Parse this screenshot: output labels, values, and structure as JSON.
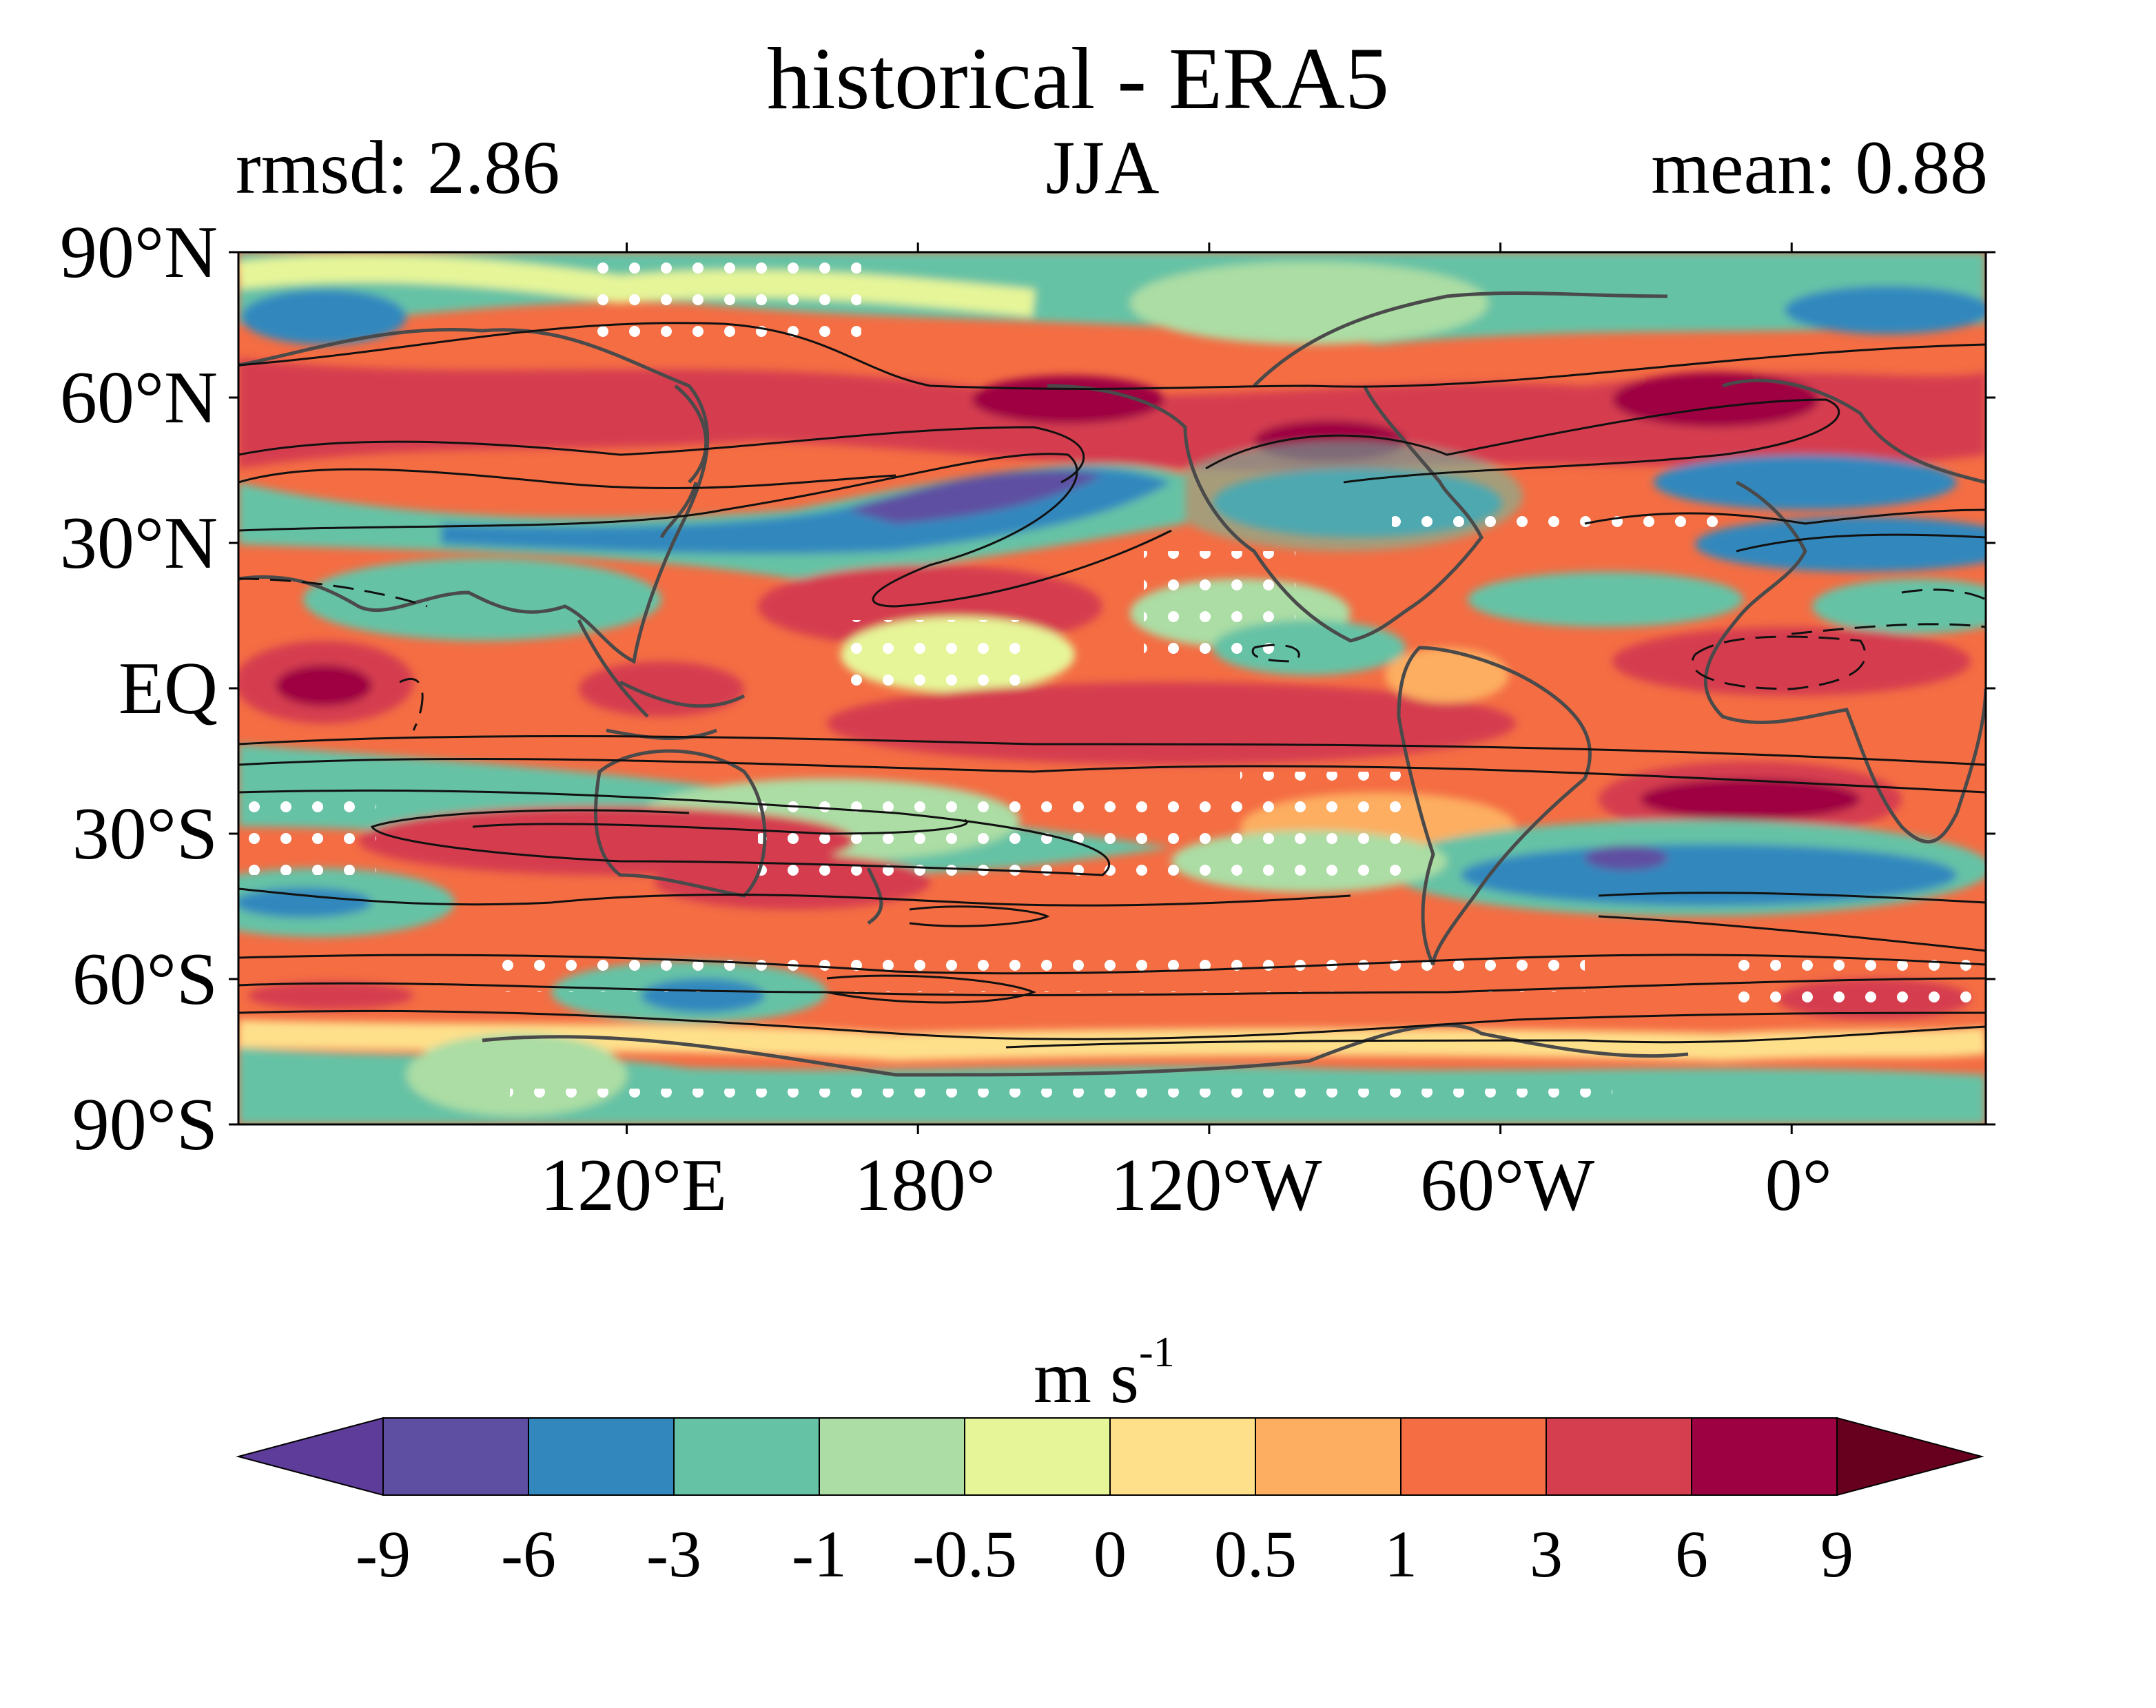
{
  "figure": {
    "title": "historical - ERA5",
    "rmsd_text": "rmsd: 2.86",
    "season": "JJA",
    "mean_text": "mean: 0.88"
  },
  "axes": {
    "lat_ticks": [
      "90°N",
      "60°N",
      "30°N",
      "EQ",
      "30°S",
      "60°S",
      "90°S"
    ],
    "lat_values": [
      90,
      60,
      30,
      0,
      -30,
      -60,
      -90
    ],
    "lon_ticks": [
      "120°E",
      "180°",
      "120°W",
      "60°W",
      "0°"
    ],
    "lon_values": [
      120,
      180,
      240,
      300,
      360
    ],
    "lon_range": [
      40,
      400
    ],
    "lat_range": [
      -90,
      90
    ]
  },
  "colorbar": {
    "units_base": "m s",
    "units_exp": "-1",
    "levels": [
      "-9",
      "-6",
      "-3",
      "-1",
      "-0.5",
      "0",
      "0.5",
      "1",
      "3",
      "6",
      "9"
    ],
    "colors": [
      "#5e3c99",
      "#5e4fa2",
      "#3288bd",
      "#66c2a5",
      "#abdda4",
      "#e6f598",
      "#fee08b",
      "#fdae61",
      "#f46d43",
      "#d53e4f",
      "#9e0142",
      "#67001f"
    ],
    "extend": "both"
  }
}
